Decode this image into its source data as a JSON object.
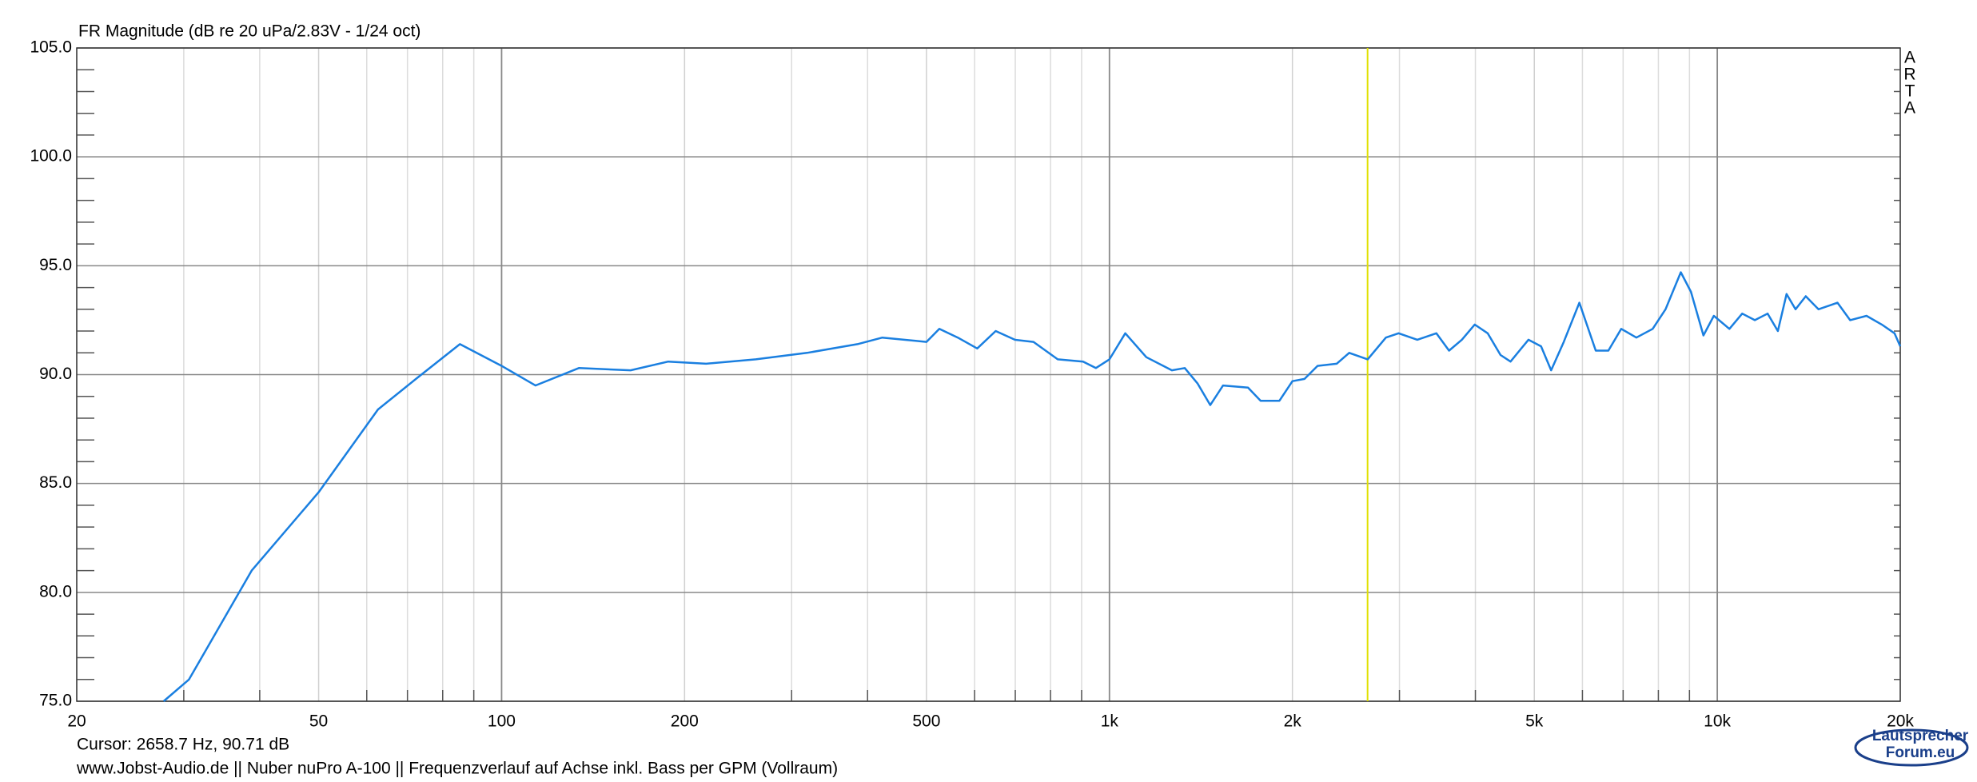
{
  "chart_data": {
    "type": "line",
    "title": "FR Magnitude (dB re 20 uPa/2.83V - 1/24 oct)",
    "side_label": [
      "A",
      "R",
      "T",
      "A"
    ],
    "cursor_text": "Cursor: 2658.7 Hz, 90.71 dB",
    "cursor_x": 2658.7,
    "cursor_color": "#e0e000",
    "footer": "www.Jobst-Audio.de  ||  Nuber nuPro A-100  ||  Frequenzverlauf auf Achse inkl. Bass per GPM (Vollraum)",
    "logo": [
      "Lautsprecher",
      "Forum.eu"
    ],
    "log_x": true,
    "grid": true,
    "xlim": [
      20,
      20000
    ],
    "ylim": [
      75,
      105
    ],
    "xticks": [
      20,
      50,
      100,
      200,
      500,
      {
        "value": 1000,
        "label": "1k"
      },
      {
        "value": 2000,
        "label": "2k"
      },
      {
        "value": 5000,
        "label": "5k"
      },
      {
        "value": 10000,
        "label": "10k"
      },
      {
        "value": 20000,
        "label": "20k"
      }
    ],
    "xminorticks": [
      30,
      40,
      60,
      70,
      80,
      90,
      300,
      400,
      600,
      700,
      800,
      900,
      3000,
      4000,
      6000,
      7000,
      8000,
      9000
    ],
    "yticks": [
      {
        "value": 75,
        "label": "75.0"
      },
      {
        "value": 80,
        "label": "80.0"
      },
      {
        "value": 85,
        "label": "85.0"
      },
      {
        "value": 90,
        "label": "90.0"
      },
      {
        "value": 95,
        "label": "95.0"
      },
      {
        "value": 100,
        "label": "100.0"
      },
      {
        "value": 105,
        "label": "105.0"
      }
    ],
    "yminorticks": [
      76,
      77,
      78,
      79,
      81,
      82,
      83,
      84,
      86,
      87,
      88,
      89,
      91,
      92,
      93,
      94,
      96,
      97,
      98,
      99,
      101,
      102,
      103,
      104
    ],
    "series": [
      {
        "name": "FR",
        "color": "#1a7fe0",
        "x": [
          27.8,
          30.6,
          38.8,
          50,
          62.6,
          72.3,
          85.4,
          100,
          113.7,
          134,
          163,
          188,
          217,
          262,
          318,
          385,
          423,
          500,
          525,
          563,
          606,
          650,
          699,
          750,
          822,
          905,
          950,
          1000,
          1062,
          1150,
          1267,
          1330,
          1396,
          1465,
          1538,
          1690,
          1773,
          1904,
          2000,
          2094,
          2200,
          2365,
          2480,
          2660,
          2850,
          2990,
          3210,
          3450,
          3620,
          3800,
          3990,
          4190,
          4400,
          4570,
          4890,
          5130,
          5330,
          5590,
          5930,
          6310,
          6620,
          6950,
          7360,
          7830,
          8220,
          8710,
          9050,
          9490,
          9870,
          10470,
          10990,
          11530,
          12100,
          12580,
          13000,
          13450,
          13980,
          14670,
          15770,
          16540,
          17600,
          18650,
          19570,
          20000
        ],
        "values": [
          75,
          76,
          81,
          84.6,
          88.4,
          89.8,
          91.4,
          90.4,
          89.5,
          90.3,
          90.2,
          90.6,
          90.5,
          90.7,
          91,
          91.4,
          91.7,
          91.5,
          92.1,
          91.7,
          91.2,
          92,
          91.6,
          91.5,
          90.7,
          90.6,
          90.3,
          90.7,
          91.9,
          90.8,
          90.2,
          90.3,
          89.6,
          88.6,
          89.5,
          89.4,
          88.8,
          88.8,
          89.7,
          89.8,
          90.4,
          90.5,
          91,
          90.7,
          91.7,
          91.9,
          91.6,
          91.9,
          91.1,
          91.6,
          92.3,
          91.9,
          90.9,
          90.6,
          91.6,
          91.3,
          90.2,
          91.5,
          93.3,
          91.1,
          91.1,
          92.1,
          91.7,
          92.1,
          93,
          94.7,
          93.8,
          91.8,
          92.7,
          92.1,
          92.8,
          92.5,
          92.8,
          92,
          93.7,
          93,
          93.6,
          93,
          93.3,
          92.5,
          92.7,
          92.3,
          91.9,
          91.3
        ]
      }
    ]
  }
}
